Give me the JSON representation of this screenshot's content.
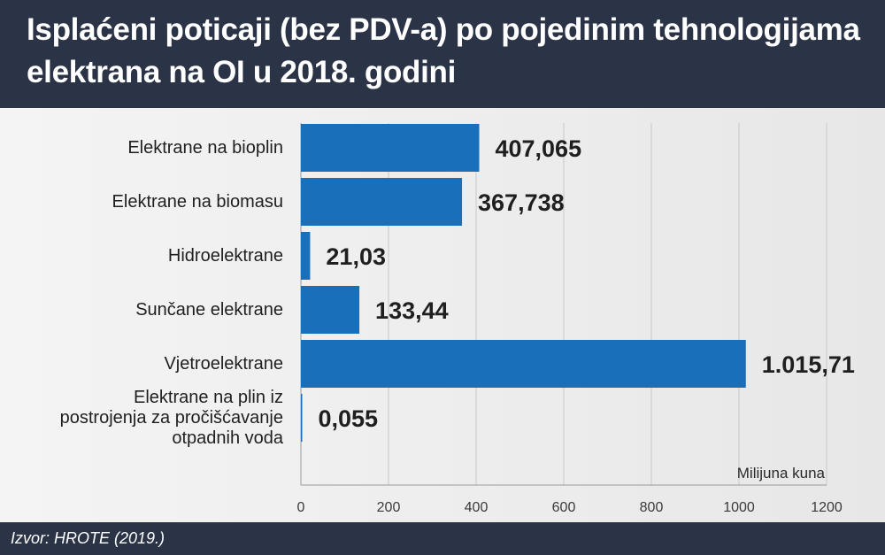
{
  "title": "Isplaćeni poticaji (bez PDV-a) po pojedinim tehnologijama elektrana na OI u 2018. godini",
  "source": "Izvor: HROTE (2019.)",
  "chart_data": {
    "type": "bar",
    "orientation": "horizontal",
    "title": "Isplaćeni poticaji (bez PDV-a) po pojedinim tehnologijama elektrana na OI u 2018. godini",
    "xlabel": "Milijuna kuna",
    "ylabel": "",
    "xlim": [
      0,
      1200
    ],
    "xticks": [
      0,
      200,
      400,
      600,
      800,
      1000,
      1200
    ],
    "grid": true,
    "bar_color": "#1a6fba",
    "categories": [
      [
        "Elektrane na bioplin"
      ],
      [
        "Elektrane na biomasu"
      ],
      [
        "Hidroelektrane"
      ],
      [
        "Sunčane elektrane"
      ],
      [
        "Vjetroelektrane"
      ],
      [
        "Elektrane na plin iz",
        "postrojenja za pročišćavanje",
        "otpadnih voda"
      ]
    ],
    "values": [
      407.065,
      367.738,
      21.03,
      133.44,
      1015.71,
      0.055
    ],
    "value_labels": [
      "407,065",
      "367,738",
      "21,03",
      "133,44",
      "1.015,71",
      "0,055"
    ]
  }
}
